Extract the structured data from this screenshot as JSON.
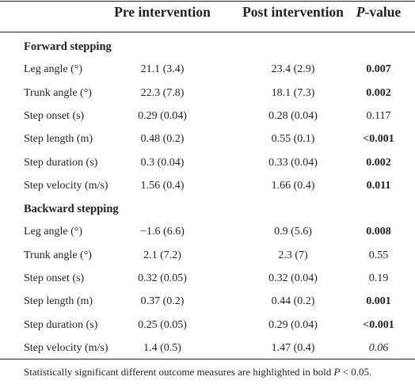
{
  "table": {
    "header": [
      "Pre intervention",
      "Post intervention"
    ],
    "p_header": {
      "italic": "P",
      "rest": "-value"
    },
    "sections": [
      {
        "title": "Forward stepping",
        "rows": [
          {
            "label": "Leg angle (°)",
            "pre": "21.1 (3.4)",
            "post": "23.4 (2.9)",
            "p": "0.007",
            "bold": true
          },
          {
            "label": "Trunk angle (°)",
            "pre": "22.3 (7.8)",
            "post": "18.1 (7.3)",
            "p": "0.002",
            "bold": true
          },
          {
            "label": "Step onset (s)",
            "pre": "0.29 (0.04)",
            "post": "0.28 (0.04)",
            "p": "0.117"
          },
          {
            "label": "Step length (m)",
            "pre": "0.48 (0.2)",
            "post": "0.55 (0.1)",
            "p": "<0.001",
            "bold": true
          },
          {
            "label": "Step duration (s)",
            "pre": "0.3 (0.04)",
            "post": "0.33 (0.04)",
            "p": "0.002",
            "bold": true
          },
          {
            "label": "Step velocity (m/s)",
            "pre": "1.56 (0.4)",
            "post": "1.66 (0.4)",
            "p": "0.011",
            "bold": true
          }
        ]
      },
      {
        "title": "Backward stepping",
        "rows": [
          {
            "label": "Leg angle (°)",
            "pre": "−1.6 (6.6)",
            "post": "0.9 (5.6)",
            "p": "0.008",
            "bold": true
          },
          {
            "label": "Trunk angle (°)",
            "pre": "2.1 (7.2)",
            "post": "2.3 (7)",
            "p": "0.55"
          },
          {
            "label": "Step onset (s)",
            "pre": "0.32 (0.05)",
            "post": "0.32 (0.04)",
            "p": "0.19"
          },
          {
            "label": "Step length (m)",
            "pre": "0.37 (0.2)",
            "post": "0.44 (0.2)",
            "p": "0.001",
            "bold": true
          },
          {
            "label": "Step duration (s)",
            "pre": "0.25 (0.05)",
            "post": "0.29 (0.04)",
            "p": "<0.001",
            "bold": true
          },
          {
            "label": "Step velocity (m/s)",
            "pre": "1.4 (0.5)",
            "post": "1.47 (0.4)",
            "p": "0.06",
            "italic": true
          }
        ]
      }
    ]
  },
  "footnote": {
    "text": "Statistically significant different outcome measures are highlighted in bold ",
    "italic": "P",
    "rest": " < 0.05."
  }
}
